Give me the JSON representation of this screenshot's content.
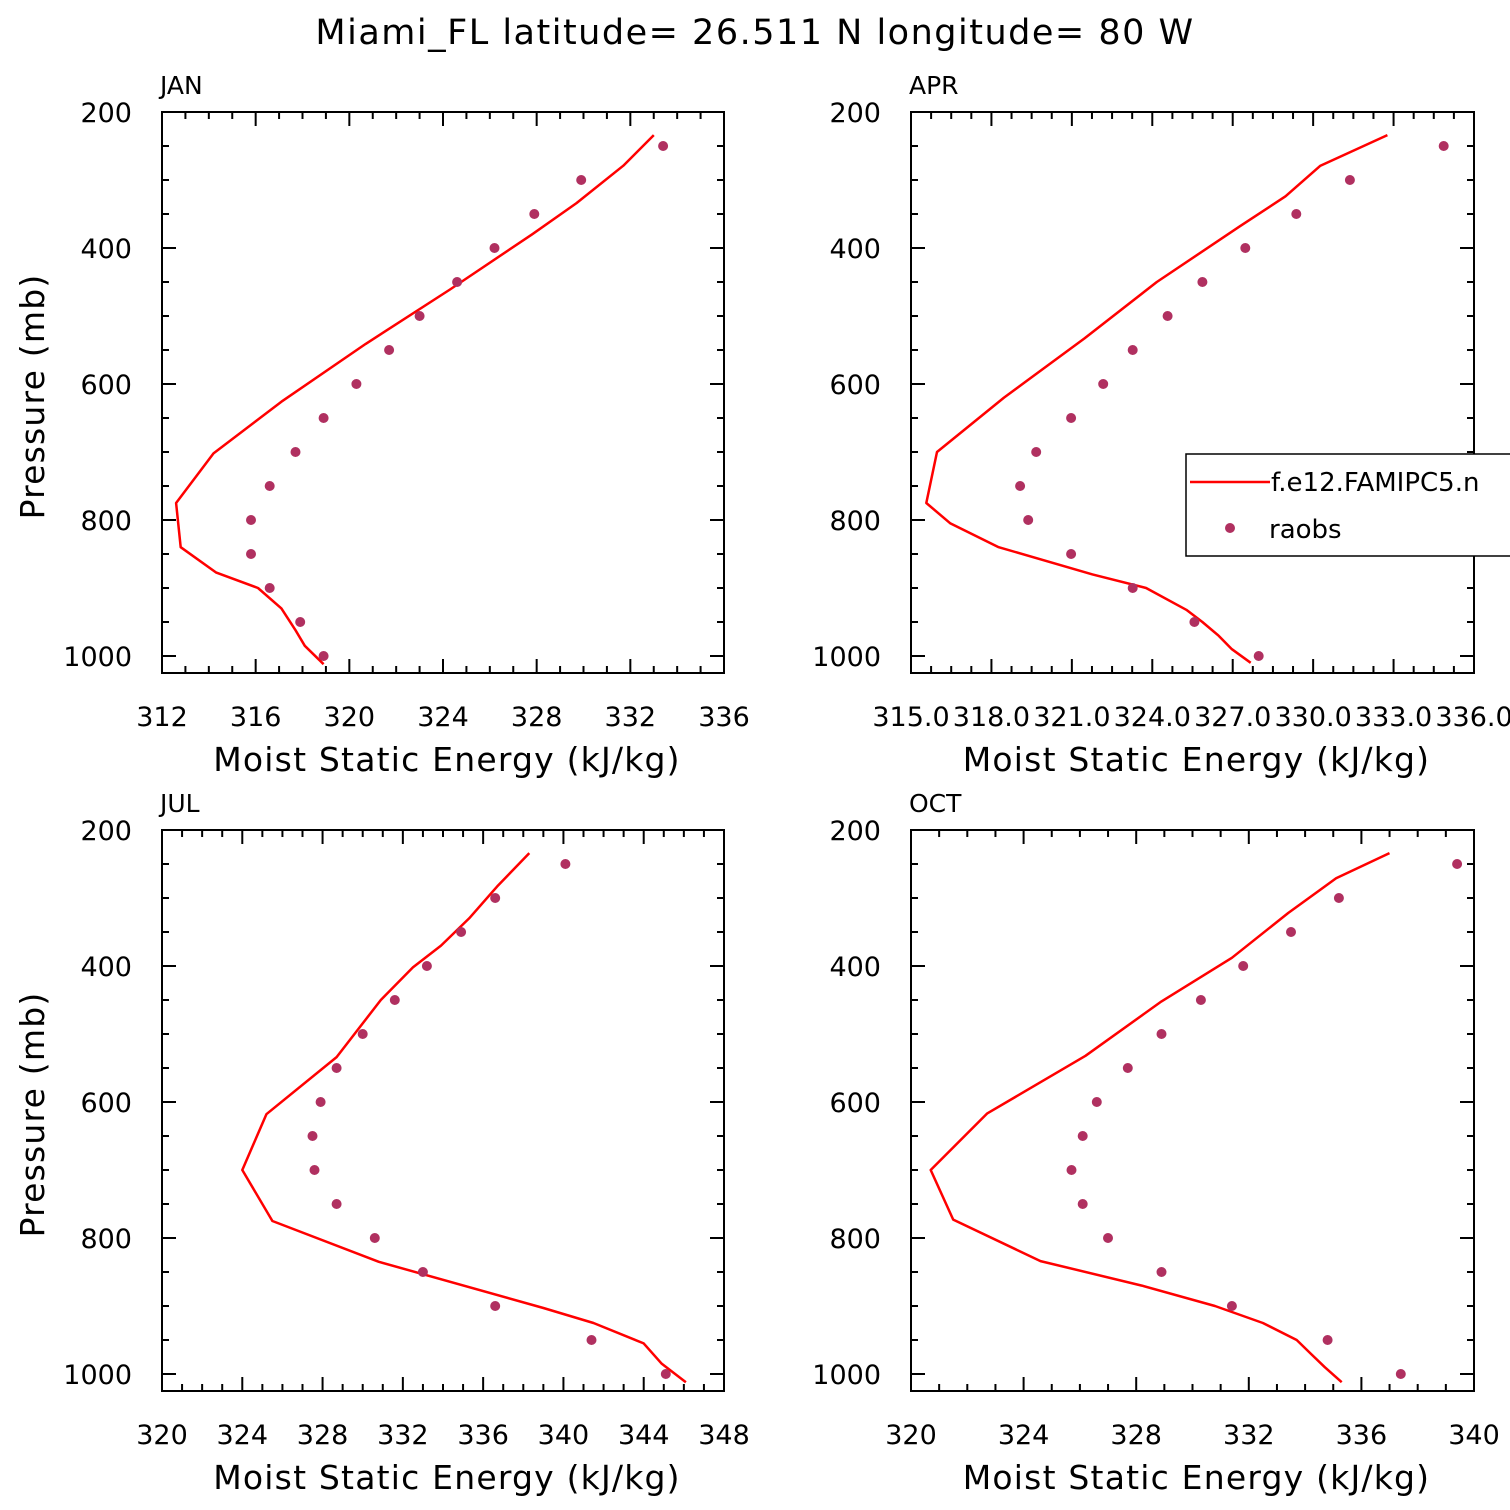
{
  "title": "Miami_FL  latitude= 26.511 N longitude= 80 W",
  "colors": {
    "model": "#ff0000",
    "obs": "#b03060",
    "axis": "#000000"
  },
  "legend": {
    "model_label": "f.e12.FAMIPC5.n",
    "obs_label": "raobs",
    "position": "right-middle"
  },
  "chart_data": [
    {
      "type": "line",
      "panel_label": "JAN",
      "xlabel": "Moist Static Energy (kJ/kg)",
      "ylabel": "Pressure (mb)",
      "xlim": [
        312,
        336
      ],
      "ylim": [
        1000,
        200
      ],
      "xticks": [
        312,
        316,
        320,
        324,
        328,
        332,
        336
      ],
      "xtick_labels": [
        "312",
        "316",
        "320",
        "324",
        "328",
        "332",
        "336"
      ],
      "yticks": [
        200,
        400,
        600,
        800,
        1000
      ],
      "ytick_labels": [
        "200",
        "400",
        "600",
        "800",
        "1000"
      ],
      "series": [
        {
          "kind": "line",
          "points": [
            [
              318.9,
              1012
            ],
            [
              318.1,
              985
            ],
            [
              317.7,
              962
            ],
            [
              317.1,
              930
            ],
            [
              316.1,
              900
            ],
            [
              314.3,
              877
            ],
            [
              312.8,
              840
            ],
            [
              312.6,
              775
            ],
            [
              314.2,
              702
            ],
            [
              317.1,
              626
            ],
            [
              320.7,
              541
            ],
            [
              324.3,
              461
            ],
            [
              327.8,
              380
            ],
            [
              329.7,
              334
            ],
            [
              331.7,
              279
            ],
            [
              333.0,
              234
            ]
          ]
        },
        {
          "kind": "scatter",
          "points": [
            [
              318.9,
              1000
            ],
            [
              317.9,
              950
            ],
            [
              316.6,
              900
            ],
            [
              315.8,
              850
            ],
            [
              315.8,
              800
            ],
            [
              316.6,
              750
            ],
            [
              317.7,
              700
            ],
            [
              318.9,
              650
            ],
            [
              320.3,
              600
            ],
            [
              321.7,
              550
            ],
            [
              323.0,
              500
            ],
            [
              324.6,
              450
            ],
            [
              326.2,
              400
            ],
            [
              327.9,
              350
            ],
            [
              329.9,
              300
            ],
            [
              333.4,
              250
            ]
          ]
        }
      ]
    },
    {
      "type": "line",
      "panel_label": "APR",
      "xlabel": "Moist Static Energy (kJ/kg)",
      "ylabel": "",
      "xlim": [
        315.03,
        336.03
      ],
      "ylim": [
        1000,
        200
      ],
      "xticks": [
        315.03,
        318.03,
        321.03,
        324.03,
        327.03,
        330.03,
        333.03,
        336.03
      ],
      "xtick_labels": [
        "315.0",
        "318.0",
        "321.0",
        "324.0",
        "327.0",
        "330.0",
        "333.0",
        "336.0"
      ],
      "yticks": [
        200,
        400,
        600,
        800,
        1000
      ],
      "ytick_labels": [
        "200",
        "400",
        "600",
        "800",
        "1000"
      ],
      "series": [
        {
          "kind": "line",
          "points": [
            [
              327.7,
              1010
            ],
            [
              327.0,
              990
            ],
            [
              326.5,
              970
            ],
            [
              325.9,
              950
            ],
            [
              325.3,
              932
            ],
            [
              323.8,
              900
            ],
            [
              321.8,
              880
            ],
            [
              318.3,
              840
            ],
            [
              316.5,
              805
            ],
            [
              315.6,
              775
            ],
            [
              316.0,
              700
            ],
            [
              318.5,
              620
            ],
            [
              321.5,
              533
            ],
            [
              324.2,
              450
            ],
            [
              327.3,
              368
            ],
            [
              329.0,
              324
            ],
            [
              330.3,
              279
            ],
            [
              332.8,
              234
            ]
          ]
        },
        {
          "kind": "scatter",
          "points": [
            [
              328.0,
              1000
            ],
            [
              325.6,
              950
            ],
            [
              323.3,
              900
            ],
            [
              321.0,
              850
            ],
            [
              319.4,
              800
            ],
            [
              319.1,
              750
            ],
            [
              319.7,
              700
            ],
            [
              321.0,
              650
            ],
            [
              322.2,
              600
            ],
            [
              323.3,
              550
            ],
            [
              324.6,
              500
            ],
            [
              325.9,
              450
            ],
            [
              327.5,
              400
            ],
            [
              329.4,
              350
            ],
            [
              331.4,
              300
            ],
            [
              334.9,
              250
            ]
          ]
        }
      ]
    },
    {
      "type": "line",
      "panel_label": "JUL",
      "xlabel": "Moist Static Energy (kJ/kg)",
      "ylabel": "Pressure (mb)",
      "xlim": [
        320,
        348
      ],
      "ylim": [
        1000,
        200
      ],
      "xticks": [
        320,
        324,
        328,
        332,
        336,
        340,
        344,
        348
      ],
      "xtick_labels": [
        "320",
        "324",
        "328",
        "332",
        "336",
        "340",
        "344",
        "348"
      ],
      "yticks": [
        200,
        400,
        600,
        800,
        1000
      ],
      "ytick_labels": [
        "200",
        "400",
        "600",
        "800",
        "1000"
      ],
      "series": [
        {
          "kind": "line",
          "points": [
            [
              346.1,
              1012
            ],
            [
              344.9,
              985
            ],
            [
              344.0,
              955
            ],
            [
              341.5,
              925
            ],
            [
              339.0,
              903
            ],
            [
              330.8,
              835
            ],
            [
              325.5,
              775
            ],
            [
              324.0,
              700
            ],
            [
              325.2,
              618
            ],
            [
              328.7,
              534
            ],
            [
              330.9,
              450
            ],
            [
              332.5,
              402
            ],
            [
              333.9,
              370
            ],
            [
              335.3,
              330
            ],
            [
              336.7,
              283
            ],
            [
              338.3,
              234
            ]
          ]
        },
        {
          "kind": "scatter",
          "points": [
            [
              345.1,
              1000
            ],
            [
              341.4,
              950
            ],
            [
              336.6,
              900
            ],
            [
              333.0,
              850
            ],
            [
              330.6,
              800
            ],
            [
              328.7,
              750
            ],
            [
              327.6,
              700
            ],
            [
              327.5,
              650
            ],
            [
              327.9,
              600
            ],
            [
              328.7,
              550
            ],
            [
              330.0,
              500
            ],
            [
              331.6,
              450
            ],
            [
              333.2,
              400
            ],
            [
              334.9,
              350
            ],
            [
              336.6,
              300
            ],
            [
              340.1,
              250
            ]
          ]
        }
      ]
    },
    {
      "type": "line",
      "panel_label": "OCT",
      "xlabel": "Moist Static Energy (kJ/kg)",
      "ylabel": "",
      "xlim": [
        320,
        340
      ],
      "ylim": [
        1000,
        200
      ],
      "xticks": [
        320,
        324,
        328,
        332,
        336,
        340
      ],
      "xtick_labels": [
        "320",
        "324",
        "328",
        "332",
        "336",
        "340"
      ],
      "yticks": [
        200,
        400,
        600,
        800,
        1000
      ],
      "ytick_labels": [
        "200",
        "400",
        "600",
        "800",
        "1000"
      ],
      "series": [
        {
          "kind": "line",
          "points": [
            [
              335.3,
              1012
            ],
            [
              334.7,
              990
            ],
            [
              334.2,
              970
            ],
            [
              333.7,
              950
            ],
            [
              332.5,
              925
            ],
            [
              330.8,
              900
            ],
            [
              328.2,
              870
            ],
            [
              324.6,
              834
            ],
            [
              321.5,
              773
            ],
            [
              320.7,
              700
            ],
            [
              322.7,
              617
            ],
            [
              326.2,
              532
            ],
            [
              328.9,
              452
            ],
            [
              331.4,
              388
            ],
            [
              333.4,
              322
            ],
            [
              335.1,
              271
            ],
            [
              337.0,
              234
            ]
          ]
        },
        {
          "kind": "scatter",
          "points": [
            [
              337.4,
              1000
            ],
            [
              334.8,
              950
            ],
            [
              331.4,
              900
            ],
            [
              328.9,
              850
            ],
            [
              327.0,
              800
            ],
            [
              326.1,
              750
            ],
            [
              325.7,
              700
            ],
            [
              326.1,
              650
            ],
            [
              326.6,
              600
            ],
            [
              327.7,
              550
            ],
            [
              328.9,
              500
            ],
            [
              330.3,
              450
            ],
            [
              331.8,
              400
            ],
            [
              333.5,
              350
            ],
            [
              335.2,
              300
            ],
            [
              339.4,
              250
            ]
          ]
        }
      ]
    }
  ]
}
